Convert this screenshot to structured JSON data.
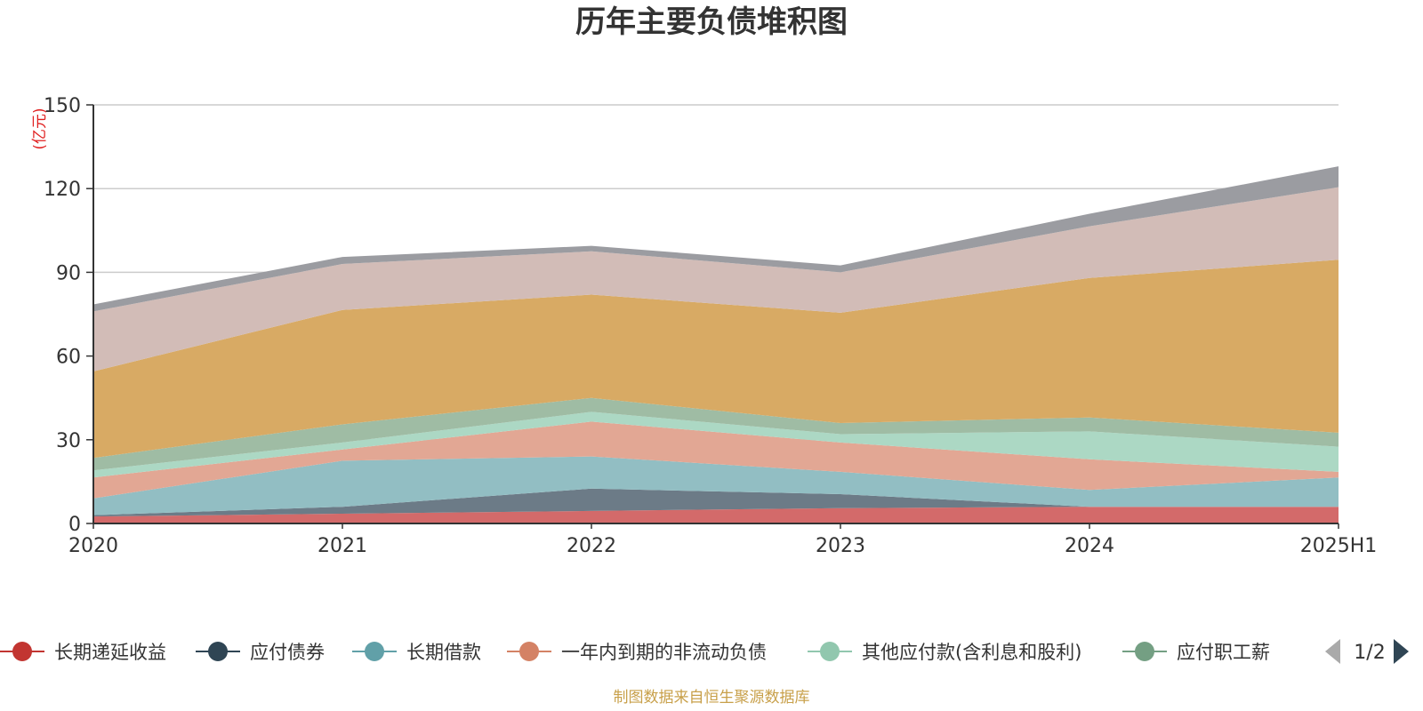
{
  "chart_data": {
    "type": "area",
    "stacked": true,
    "title": "历年主要负债堆积图",
    "unit": "(亿元)",
    "categories": [
      "2020",
      "2021",
      "2022",
      "2023",
      "2024",
      "2025H1"
    ],
    "ylim": [
      0,
      150
    ],
    "yticks": [
      "0",
      "30",
      "60",
      "90",
      "120",
      "150"
    ],
    "grid": true,
    "legend_position": "bottom",
    "series": [
      {
        "name": "长期递延收益",
        "color": "#d36a6a",
        "values": [
          2.5,
          3.5,
          4.5,
          5.5,
          6,
          6
        ]
      },
      {
        "name": "应付债券",
        "color": "#6c7b87",
        "values": [
          0.5,
          2.5,
          8,
          5,
          0,
          0
        ]
      },
      {
        "name": "长期借款",
        "color": "#92bec3",
        "values": [
          6,
          16.5,
          11.5,
          8,
          6,
          10.5
        ]
      },
      {
        "name": "一年内到期的非流动负债",
        "color": "#e2a794",
        "values": [
          7.5,
          4,
          12.5,
          10.5,
          11,
          2
        ]
      },
      {
        "name": "其他应付款(含利息和股利)",
        "color": "#acd8c4",
        "values": [
          2.5,
          2.5,
          3.5,
          3,
          10,
          9
        ]
      },
      {
        "name": "应付职工薪酬",
        "color": "#9fbca4",
        "values": [
          4.5,
          6.5,
          5,
          4,
          5,
          5
        ]
      },
      {
        "name": "",
        "color": "#d8aa64",
        "values": [
          31,
          41,
          37,
          39.5,
          50,
          62
        ]
      },
      {
        "name": "",
        "color": "#d2bcb7",
        "values": [
          21.5,
          16.5,
          15.5,
          14.5,
          18.5,
          26
        ]
      },
      {
        "name": "",
        "color": "#9b9ca1",
        "values": [
          2.5,
          2.5,
          2,
          2.5,
          4.5,
          7.5
        ]
      }
    ],
    "legend_visible": [
      "长期递延收益",
      "应付债券",
      "长期借款",
      "一年内到期的非流动负债",
      "其他应付款(含利息和股利)",
      "应付职工薪"
    ],
    "legend_marker_colors": [
      "#c23531",
      "#2f4554",
      "#61a0a8",
      "#d48265",
      "#91c7ae",
      "#749f83"
    ],
    "pagination": "1/2",
    "source": "制图数据来自恒生聚源数据库"
  }
}
